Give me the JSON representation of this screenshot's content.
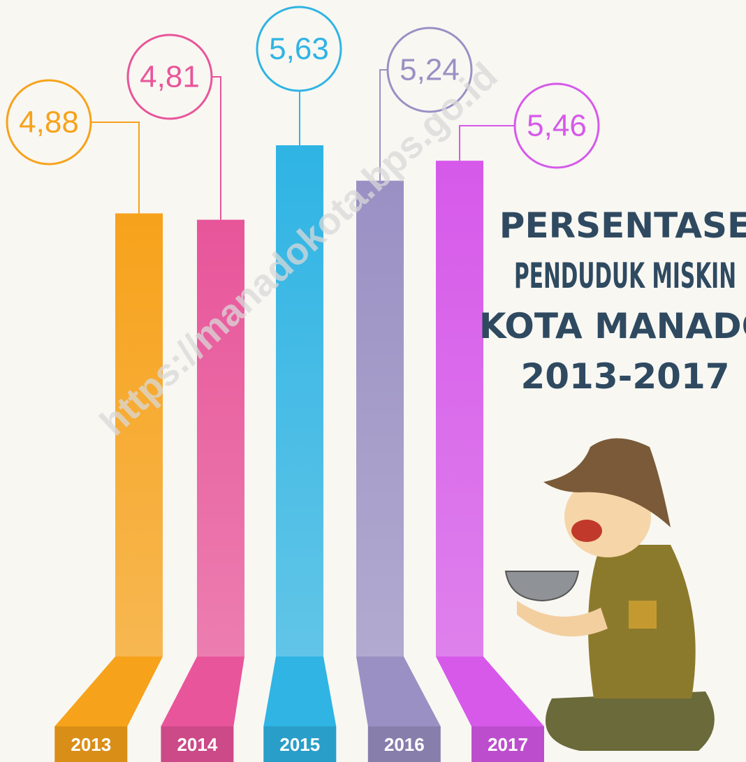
{
  "chart_data": {
    "type": "bar",
    "title": [
      "PERSENTASE",
      "PENDUDUK MISKIN",
      "KOTA MANADO",
      "2013-2017"
    ],
    "annotation": "https://manadokota.bps.go.id",
    "categories": [
      "2013",
      "2014",
      "2015",
      "2016",
      "2017"
    ],
    "values": [
      4.88,
      4.81,
      5.63,
      5.24,
      5.46
    ],
    "value_labels": [
      "4,88",
      "4,81",
      "5,63",
      "5,24",
      "5,46"
    ],
    "colors": [
      "#f7a21b",
      "#e8559a",
      "#2fb4e4",
      "#9a90c4",
      "#d659ea"
    ]
  }
}
